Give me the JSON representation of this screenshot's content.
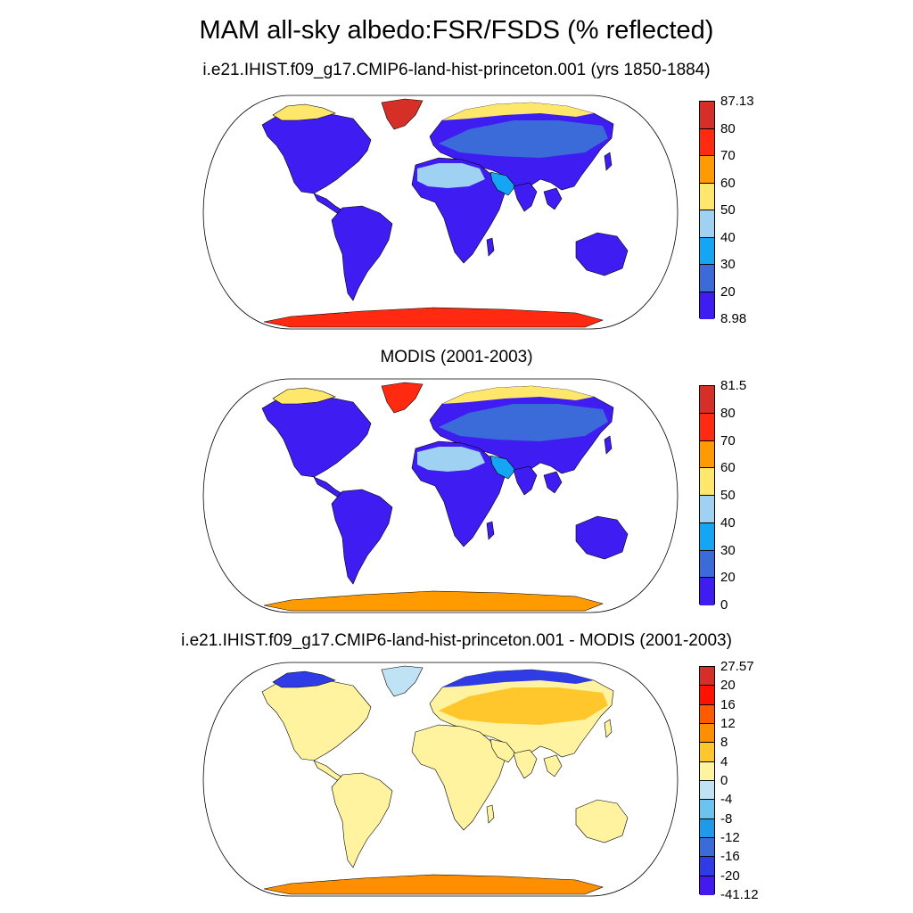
{
  "figure": {
    "title": "MAM all-sky albedo:FSR/FSDS (% reflected)"
  },
  "panels": [
    {
      "title": "i.e21.IHIST.f09_g17.CMIP6-land-hist-princeton.001 (yrs 1850-1884)",
      "colorbar": {
        "labels": [
          "87.13",
          "80",
          "70",
          "60",
          "50",
          "40",
          "30",
          "20",
          "8.98"
        ],
        "colors": [
          "#d62f27",
          "#ff2a10",
          "#ff9a00",
          "#ffe76b",
          "#9fd1f3",
          "#14a6f5",
          "#3b6ad9",
          "#3f1cf2"
        ]
      },
      "regions": {
        "land": "#3f1cf2",
        "boreal": "#3b6ad9",
        "sahara": "#9fd1f3",
        "arabia": "#14a6f5",
        "greenland": "#d62f27",
        "antarctica": "#ff2a10",
        "arctic_coast": "#ffe76b"
      }
    },
    {
      "title": "MODIS (2001-2003)",
      "colorbar": {
        "labels": [
          "81.5",
          "80",
          "70",
          "60",
          "50",
          "40",
          "30",
          "20",
          "0"
        ],
        "colors": [
          "#d62f27",
          "#ff2a10",
          "#ff9a00",
          "#ffe76b",
          "#9fd1f3",
          "#14a6f5",
          "#3b6ad9",
          "#3f1cf2"
        ]
      },
      "regions": {
        "land": "#3f1cf2",
        "boreal": "#3b6ad9",
        "sahara": "#9fd1f3",
        "arabia": "#14a6f5",
        "greenland": "#ff2a10",
        "antarctica": "#ff9a00",
        "arctic_coast": "#ffe76b"
      }
    },
    {
      "title": "i.e21.IHIST.f09_g17.CMIP6-land-hist-princeton.001 - MODIS (2001-2003)",
      "colorbar": {
        "labels": [
          "27.57",
          "20",
          "16",
          "12",
          "8",
          "4",
          "0",
          "-4",
          "-8",
          "-12",
          "-16",
          "-20",
          "-41.12"
        ],
        "colors": [
          "#d62f27",
          "#ff1300",
          "#ff5a00",
          "#ff8e00",
          "#ffc72c",
          "#fff3a0",
          "#bfe3f5",
          "#6cc3ef",
          "#1f9ae8",
          "#3b6ad9",
          "#2f3be5",
          "#4319f0"
        ]
      },
      "regions": {
        "land": "#fff3a0",
        "boreal": "#ffc72c",
        "sahara": "#fff3a0",
        "arabia": "#fff3a0",
        "greenland": "#bfe3f5",
        "antarctica": "#ff8e00",
        "arctic_coast": "#2f3be5"
      }
    }
  ]
}
